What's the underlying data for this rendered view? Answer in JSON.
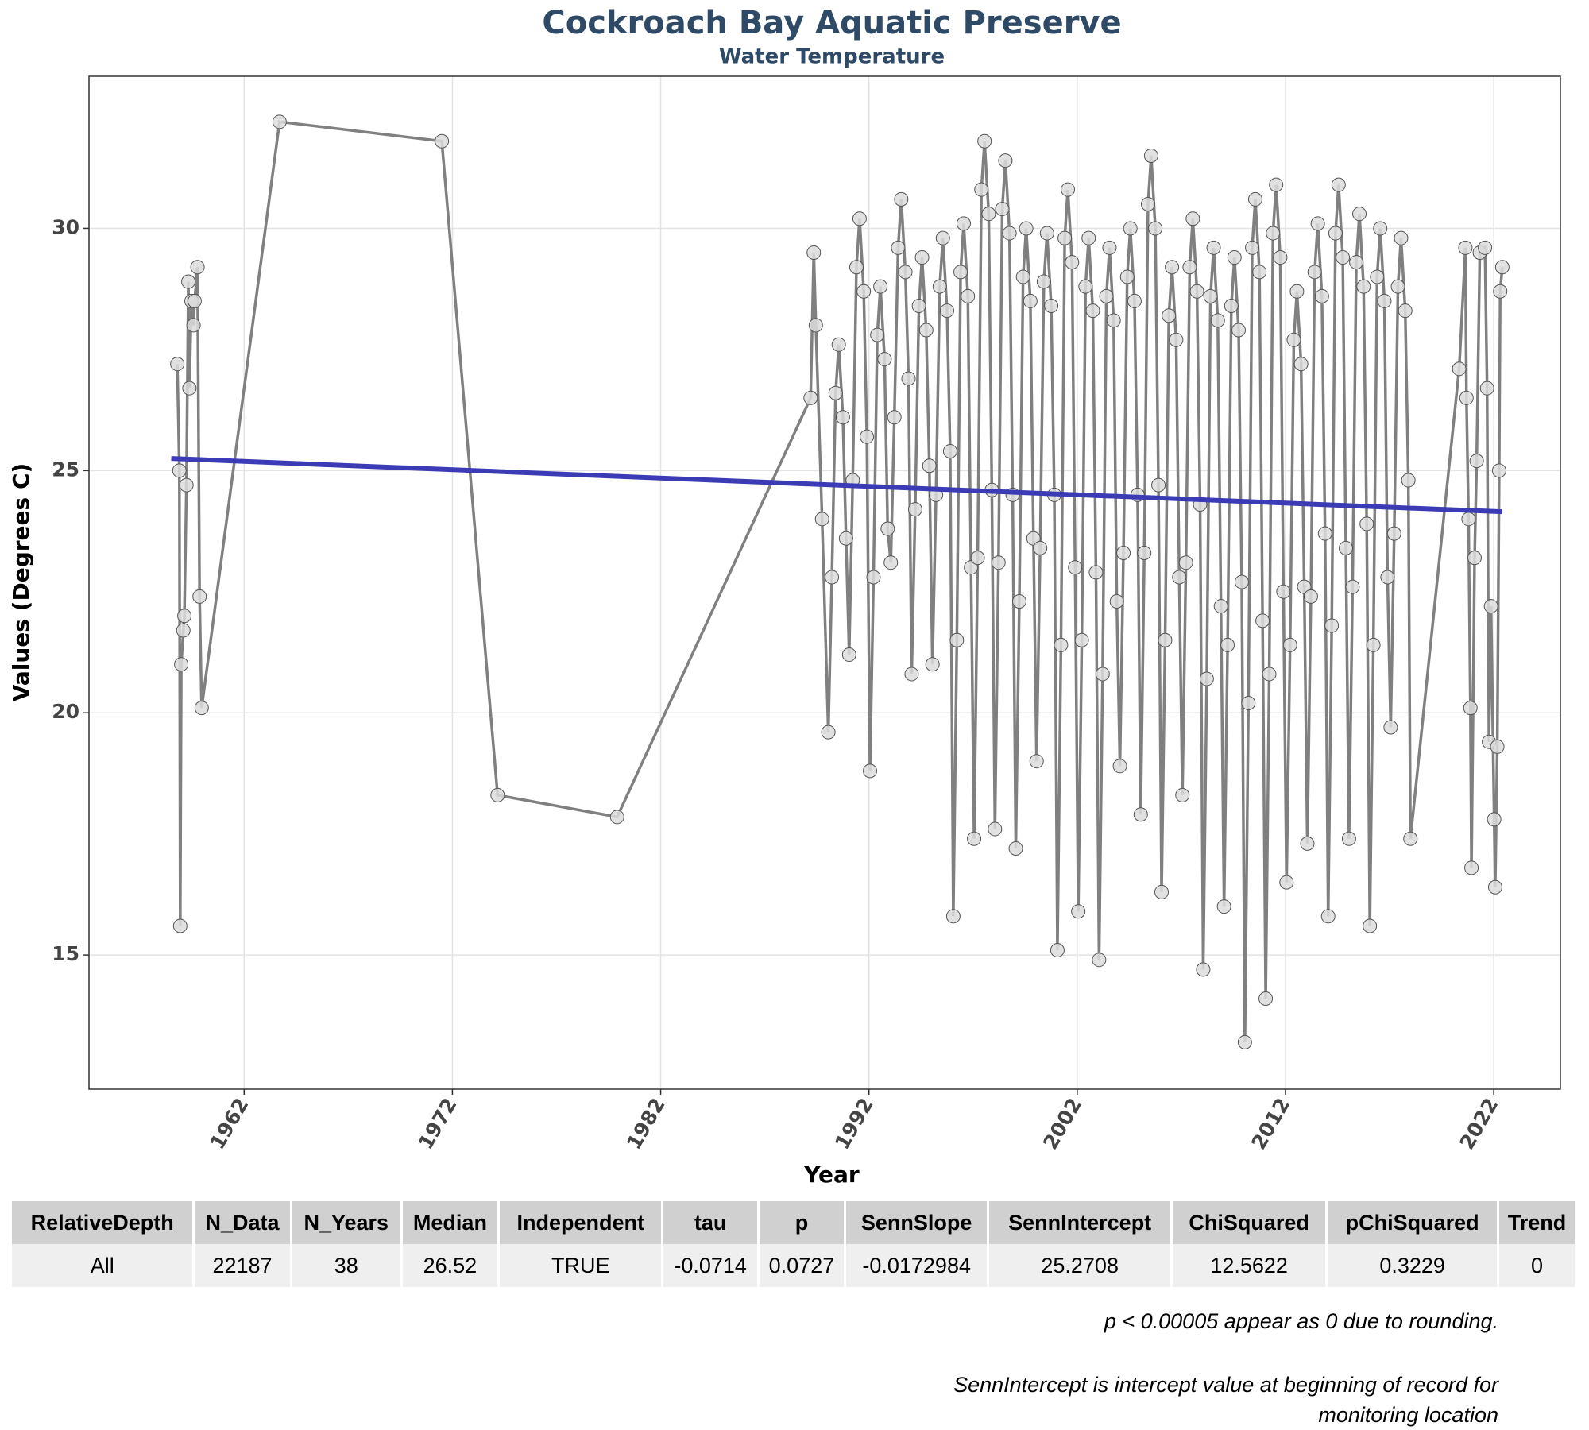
{
  "chart_data": {
    "type": "line",
    "title": "Cockroach Bay Aquatic Preserve",
    "subtitle": "Water Temperature",
    "x_label": "Year",
    "y_label": "Values (Degrees C)",
    "xlim": [
      1954.55,
      2025.2
    ],
    "ylim": [
      12.23,
      33.14
    ],
    "xticks": [
      1962,
      1972,
      1982,
      1992,
      2002,
      2012,
      2022
    ],
    "yticks": [
      15,
      20,
      25,
      30
    ],
    "grid": true,
    "points": {
      "color": "#808080",
      "x": [
        1958.79,
        1958.89,
        1958.93,
        1958.98,
        1959.08,
        1959.13,
        1959.23,
        1959.32,
        1959.37,
        1959.47,
        1959.57,
        1959.62,
        1959.76,
        1959.86,
        1959.96,
        1963.7,
        1971.49,
        1974.17,
        1979.91,
        1989.2,
        1989.35,
        1989.45,
        1989.75,
        1990.05,
        1990.22,
        1990.4,
        1990.55,
        1990.75,
        1990.9,
        1991.05,
        1991.22,
        1991.4,
        1991.55,
        1991.75,
        1991.9,
        1992.05,
        1992.22,
        1992.4,
        1992.55,
        1992.75,
        1992.9,
        1993.05,
        1993.22,
        1993.4,
        1993.55,
        1993.75,
        1993.9,
        1994.05,
        1994.22,
        1994.4,
        1994.55,
        1994.75,
        1994.9,
        1995.05,
        1995.22,
        1995.4,
        1995.55,
        1995.75,
        1995.9,
        1996.05,
        1996.22,
        1996.4,
        1996.55,
        1996.75,
        1996.9,
        1997.05,
        1997.22,
        1997.4,
        1997.55,
        1997.75,
        1997.9,
        1998.05,
        1998.22,
        1998.4,
        1998.55,
        1998.75,
        1998.9,
        1999.05,
        1999.22,
        1999.4,
        1999.55,
        1999.75,
        1999.9,
        2000.05,
        2000.22,
        2000.4,
        2000.55,
        2000.75,
        2000.9,
        2001.05,
        2001.22,
        2001.4,
        2001.55,
        2001.75,
        2001.9,
        2002.05,
        2002.22,
        2002.4,
        2002.55,
        2002.75,
        2002.9,
        2003.05,
        2003.22,
        2003.4,
        2003.55,
        2003.75,
        2003.9,
        2004.05,
        2004.22,
        2004.4,
        2004.55,
        2004.75,
        2004.9,
        2005.05,
        2005.22,
        2005.4,
        2005.55,
        2005.75,
        2005.9,
        2006.05,
        2006.22,
        2006.4,
        2006.55,
        2006.75,
        2006.9,
        2007.05,
        2007.22,
        2007.4,
        2007.55,
        2007.75,
        2007.9,
        2008.05,
        2008.22,
        2008.4,
        2008.55,
        2008.75,
        2008.9,
        2009.05,
        2009.22,
        2009.4,
        2009.55,
        2009.75,
        2009.9,
        2010.05,
        2010.22,
        2010.4,
        2010.55,
        2010.75,
        2010.9,
        2011.05,
        2011.22,
        2011.4,
        2011.55,
        2011.75,
        2011.9,
        2012.05,
        2012.22,
        2012.4,
        2012.55,
        2012.75,
        2012.9,
        2013.05,
        2013.22,
        2013.4,
        2013.55,
        2013.75,
        2013.9,
        2014.05,
        2014.22,
        2014.4,
        2014.55,
        2014.75,
        2014.9,
        2015.05,
        2015.22,
        2015.4,
        2015.55,
        2015.75,
        2015.9,
        2016.05,
        2016.22,
        2016.4,
        2016.55,
        2016.75,
        2016.9,
        2017.05,
        2017.22,
        2017.4,
        2017.55,
        2017.75,
        2017.9,
        2018.0,
        2020.34,
        2020.64,
        2020.69,
        2020.79,
        2020.88,
        2020.93,
        2021.08,
        2021.18,
        2021.33,
        2021.58,
        2021.68,
        2021.77,
        2021.87,
        2022.02,
        2022.07,
        2022.17,
        2022.26,
        2022.31,
        2022.41
      ],
      "values": [
        27.2,
        25.0,
        15.6,
        21.0,
        21.7,
        22.0,
        24.7,
        28.9,
        26.7,
        28.5,
        28.0,
        28.5,
        29.2,
        22.4,
        20.1,
        32.2,
        31.8,
        18.3,
        17.85,
        26.5,
        29.5,
        28.0,
        24.0,
        19.6,
        22.8,
        26.6,
        27.6,
        26.1,
        23.6,
        21.2,
        24.8,
        29.2,
        30.2,
        28.7,
        25.7,
        18.8,
        22.8,
        27.8,
        28.8,
        27.3,
        23.8,
        23.1,
        26.1,
        29.6,
        30.6,
        29.1,
        26.9,
        20.8,
        24.2,
        28.4,
        29.4,
        27.9,
        25.1,
        21.0,
        24.5,
        28.8,
        29.8,
        28.3,
        25.4,
        15.8,
        21.5,
        29.1,
        30.1,
        28.6,
        23.0,
        17.4,
        23.2,
        30.8,
        31.8,
        30.3,
        24.6,
        17.6,
        23.1,
        30.4,
        31.4,
        29.9,
        24.5,
        17.2,
        22.3,
        29.0,
        30.0,
        28.5,
        23.6,
        19.0,
        23.4,
        28.9,
        29.9,
        28.4,
        24.5,
        15.1,
        21.4,
        29.8,
        30.8,
        29.3,
        23.0,
        15.9,
        21.5,
        28.8,
        29.8,
        28.3,
        22.9,
        14.9,
        20.8,
        28.6,
        29.6,
        28.1,
        22.3,
        18.9,
        23.3,
        29.0,
        30.0,
        28.5,
        24.5,
        17.9,
        23.3,
        30.5,
        31.5,
        30.0,
        24.7,
        16.3,
        21.5,
        28.2,
        29.2,
        27.7,
        22.8,
        18.3,
        23.1,
        29.2,
        30.2,
        28.7,
        24.3,
        14.7,
        20.7,
        28.6,
        29.6,
        28.1,
        22.2,
        16.0,
        21.4,
        28.4,
        29.4,
        27.9,
        22.7,
        13.2,
        20.2,
        29.6,
        30.6,
        29.1,
        21.9,
        14.1,
        20.8,
        29.9,
        30.9,
        29.4,
        22.5,
        16.5,
        21.4,
        27.7,
        28.7,
        27.2,
        22.6,
        17.3,
        22.4,
        29.1,
        30.1,
        28.6,
        23.7,
        15.8,
        21.8,
        29.9,
        30.9,
        29.4,
        23.4,
        17.4,
        22.6,
        29.3,
        30.3,
        28.8,
        23.9,
        15.6,
        21.4,
        29.0,
        30.0,
        28.5,
        22.8,
        19.7,
        23.7,
        28.8,
        29.8,
        28.3,
        24.8,
        17.4,
        27.1,
        29.6,
        26.5,
        24.0,
        20.1,
        16.8,
        23.2,
        25.2,
        29.5,
        29.6,
        26.7,
        19.4,
        22.2,
        17.8,
        16.4,
        19.3,
        25.0,
        28.7,
        29.2
      ]
    },
    "trend": {
      "color": "#3b3bb5",
      "x": [
        1958.5,
        2022.4
      ],
      "values": [
        25.25,
        24.15
      ]
    }
  },
  "table": {
    "columns": [
      "RelativeDepth",
      "N_Data",
      "N_Years",
      "Median",
      "Independent",
      "tau",
      "p",
      "SennSlope",
      "SennIntercept",
      "ChiSquared",
      "pChiSquared",
      "Trend"
    ],
    "rows": [
      [
        "All",
        "22187",
        "38",
        "26.52",
        "TRUE",
        "-0.0714",
        "0.0727",
        "-0.0172984",
        "25.2708",
        "12.5622",
        "0.3229",
        "0"
      ]
    ]
  },
  "notes": [
    "p < 0.00005 appear as 0 due to rounding.",
    "SennIntercept is intercept value at beginning of record for monitoring location"
  ]
}
